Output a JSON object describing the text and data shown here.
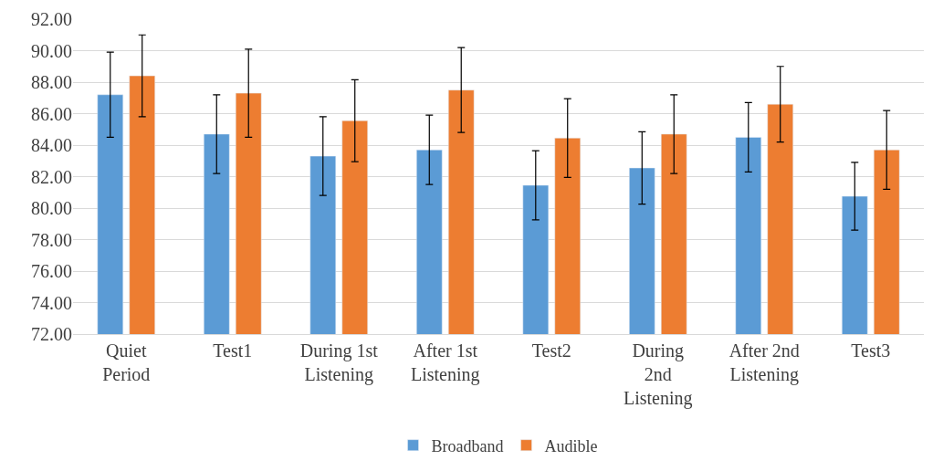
{
  "chart_data": {
    "type": "bar",
    "categories": [
      "Quiet\nPeriod",
      "Test1",
      "During 1st\nListening",
      "After 1st\nListening",
      "Test2",
      "During\n2nd\nListening",
      "After 2nd\nListening",
      "Test3"
    ],
    "series": [
      {
        "name": "Broadband",
        "color": "#5b9bd5",
        "values": [
          87.2,
          84.7,
          83.3,
          83.7,
          81.45,
          82.55,
          84.5,
          80.75
        ],
        "errors": [
          2.7,
          2.5,
          2.5,
          2.2,
          2.2,
          2.3,
          2.2,
          2.15
        ]
      },
      {
        "name": "Audible",
        "color": "#ed7d31",
        "values": [
          88.4,
          87.3,
          85.55,
          87.5,
          84.45,
          84.7,
          86.6,
          83.7
        ],
        "errors": [
          2.6,
          2.8,
          2.6,
          2.7,
          2.5,
          2.5,
          2.4,
          2.5
        ]
      }
    ],
    "ylim": [
      72,
      92
    ],
    "yticks": [
      {
        "value": 72,
        "label": "72.00"
      },
      {
        "value": 74,
        "label": "74.00"
      },
      {
        "value": 76,
        "label": "76.00"
      },
      {
        "value": 78,
        "label": "78.00"
      },
      {
        "value": 80,
        "label": "80.00"
      },
      {
        "value": 82,
        "label": "82.00"
      },
      {
        "value": 84,
        "label": "84.00"
      },
      {
        "value": 86,
        "label": "86.00"
      },
      {
        "value": 88,
        "label": "88.00"
      },
      {
        "value": 90,
        "label": "90.00"
      },
      {
        "value": 92,
        "label": "92.00"
      }
    ],
    "grid": "y",
    "legend": "bottom"
  }
}
